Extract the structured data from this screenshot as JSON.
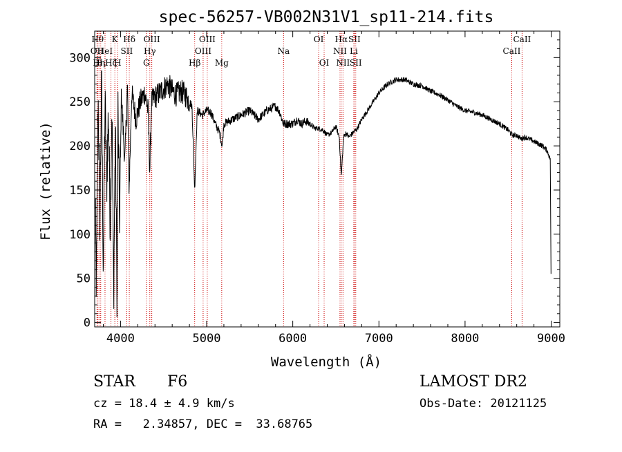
{
  "chart_data": {
    "type": "line",
    "title": "spec-56257-VB002N31V1_sp11-214.fits",
    "xlabel": "Wavelength (Å)",
    "ylabel": "Flux (relative)",
    "xlim": [
      3700,
      9100
    ],
    "ylim": [
      -5,
      330
    ],
    "x_ticks": [
      "4000",
      "5000",
      "6000",
      "7000",
      "8000",
      "9000"
    ],
    "y_ticks": [
      "0",
      "50",
      "100",
      "150",
      "200",
      "250",
      "300"
    ],
    "grid": false,
    "legend": "none",
    "line_color": "#000000",
    "marker_color": "#cc0000",
    "series": [
      {
        "anchors": [
          [
            3700,
            160
          ],
          [
            3720,
            40
          ],
          [
            3740,
            260
          ],
          [
            3760,
            120
          ],
          [
            3780,
            270
          ],
          [
            3800,
            60
          ],
          [
            3820,
            250
          ],
          [
            3840,
            160
          ],
          [
            3860,
            240
          ],
          [
            3880,
            110
          ],
          [
            3900,
            250
          ],
          [
            3920,
            30
          ],
          [
            3940,
            220
          ],
          [
            3960,
            20
          ],
          [
            3970,
            240
          ],
          [
            3990,
            110
          ],
          [
            4010,
            260
          ],
          [
            4050,
            180
          ],
          [
            4080,
            270
          ],
          [
            4100,
            150
          ],
          [
            4130,
            260
          ],
          [
            4180,
            230
          ],
          [
            4230,
            250
          ],
          [
            4280,
            260
          ],
          [
            4320,
            240
          ],
          [
            4340,
            170
          ],
          [
            4360,
            250
          ],
          [
            4400,
            255
          ],
          [
            4450,
            260
          ],
          [
            4500,
            265
          ],
          [
            4550,
            270
          ],
          [
            4600,
            262
          ],
          [
            4650,
            258
          ],
          [
            4700,
            262
          ],
          [
            4750,
            258
          ],
          [
            4800,
            250
          ],
          [
            4830,
            245
          ],
          [
            4861,
            150
          ],
          [
            4890,
            240
          ],
          [
            4950,
            235
          ],
          [
            5000,
            240
          ],
          [
            5050,
            238
          ],
          [
            5100,
            225
          ],
          [
            5150,
            215
          ],
          [
            5180,
            200
          ],
          [
            5200,
            225
          ],
          [
            5300,
            230
          ],
          [
            5400,
            235
          ],
          [
            5500,
            240
          ],
          [
            5600,
            230
          ],
          [
            5700,
            240
          ],
          [
            5800,
            245
          ],
          [
            5850,
            238
          ],
          [
            5890,
            225
          ],
          [
            5950,
            225
          ],
          [
            6000,
            225
          ],
          [
            6050,
            230
          ],
          [
            6100,
            225
          ],
          [
            6150,
            228
          ],
          [
            6200,
            225
          ],
          [
            6250,
            220
          ],
          [
            6300,
            220
          ],
          [
            6350,
            218
          ],
          [
            6400,
            212
          ],
          [
            6450,
            215
          ],
          [
            6500,
            222
          ],
          [
            6540,
            210
          ],
          [
            6563,
            165
          ],
          [
            6590,
            210
          ],
          [
            6620,
            215
          ],
          [
            6650,
            210
          ],
          [
            6700,
            215
          ],
          [
            6750,
            220
          ],
          [
            6800,
            230
          ],
          [
            6900,
            245
          ],
          [
            7000,
            260
          ],
          [
            7100,
            270
          ],
          [
            7200,
            275
          ],
          [
            7300,
            275
          ],
          [
            7400,
            270
          ],
          [
            7500,
            268
          ],
          [
            7600,
            262
          ],
          [
            7700,
            258
          ],
          [
            7800,
            252
          ],
          [
            7900,
            245
          ],
          [
            8000,
            240
          ],
          [
            8100,
            238
          ],
          [
            8200,
            235
          ],
          [
            8300,
            230
          ],
          [
            8400,
            225
          ],
          [
            8500,
            218
          ],
          [
            8550,
            212
          ],
          [
            8600,
            212
          ],
          [
            8650,
            208
          ],
          [
            8700,
            210
          ],
          [
            8800,
            205
          ],
          [
            8900,
            200
          ],
          [
            8950,
            195
          ],
          [
            8990,
            185
          ],
          [
            9000,
            20
          ]
        ]
      }
    ],
    "lines": [
      {
        "wl": 3734,
        "label": "Hθ",
        "row": 0
      },
      {
        "wl": 3727,
        "label": "OII",
        "row": 1
      },
      {
        "wl": 3750,
        "label": "Hη",
        "row": 2
      },
      {
        "wl": 3770,
        "label": "Hι",
        "row": 2
      },
      {
        "wl": 3820,
        "label": "HeI",
        "row": 1
      },
      {
        "wl": 3889,
        "label": "Hζ",
        "row": 2
      },
      {
        "wl": 3934,
        "label": "K",
        "row": 0
      },
      {
        "wl": 3968,
        "label": "H",
        "row": 2
      },
      {
        "wl": 4072,
        "label": "SII",
        "row": 1
      },
      {
        "wl": 4102,
        "label": "Hδ",
        "row": 0
      },
      {
        "wl": 4300,
        "label": "G",
        "row": 2
      },
      {
        "wl": 4340,
        "label": "Hγ",
        "row": 1
      },
      {
        "wl": 4363,
        "label": "OIII",
        "row": 0
      },
      {
        "wl": 4861,
        "label": "Hβ",
        "row": 2
      },
      {
        "wl": 4959,
        "label": "OIII",
        "row": 1
      },
      {
        "wl": 5007,
        "label": "OIII",
        "row": 0
      },
      {
        "wl": 5175,
        "label": "Mg",
        "row": 2
      },
      {
        "wl": 5893,
        "label": "Na",
        "row": 1
      },
      {
        "wl": 6300,
        "label": "OI",
        "row": 0
      },
      {
        "wl": 6364,
        "label": "OI",
        "row": 2
      },
      {
        "wl": 6548,
        "label": "NII",
        "row": 1
      },
      {
        "wl": 6563,
        "label": "Hα",
        "row": 0
      },
      {
        "wl": 6583,
        "label": "NII",
        "row": 2
      },
      {
        "wl": 6708,
        "label": "Li",
        "row": 1
      },
      {
        "wl": 6716,
        "label": "SII",
        "row": 0
      },
      {
        "wl": 6731,
        "label": "SII",
        "row": 2
      },
      {
        "wl": 8542,
        "label": "CaII",
        "row": 1
      },
      {
        "wl": 8662,
        "label": "CaII",
        "row": 0
      }
    ]
  },
  "info": {
    "object": "STAR",
    "subclass": "F6",
    "survey": "LAMOST DR2",
    "cz": "cz = 18.4 ± 4.9 km/s",
    "obs_date": "Obs-Date: 20121125",
    "coords": "RA =   2.34857, DEC =  33.68765"
  }
}
